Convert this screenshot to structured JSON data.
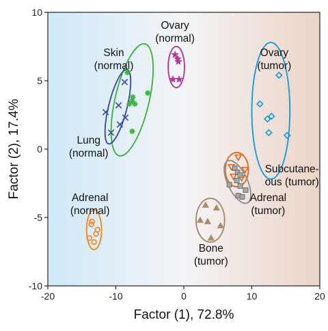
{
  "chart_data": {
    "type": "scatter",
    "xlabel": "Factor (1), 72.8%",
    "ylabel": "Factor (2), 17.4%",
    "xlim": [
      -20,
      20
    ],
    "ylim": [
      -10,
      10
    ],
    "xticks": [
      "-20",
      "-10",
      "0",
      "10",
      "20"
    ],
    "yticks": [
      "-10",
      "-5",
      "0",
      "5",
      "10"
    ],
    "grid": false,
    "legend": "none",
    "background": {
      "left": "#cfe9f8",
      "mid": "#f4f4f6",
      "right": "#ecd4c7"
    },
    "series": [
      {
        "name": "Skin (normal)",
        "marker": "asterisk",
        "color": "#3db43d",
        "points": [
          [
            -8.3,
            5.6
          ],
          [
            -7.5,
            3.8
          ],
          [
            -7.2,
            3.3
          ],
          [
            -7.6,
            3.5
          ],
          [
            -5.3,
            4.1
          ],
          [
            -8.0,
            3.3
          ],
          [
            -7.6,
            1.3
          ]
        ],
        "ellipse": {
          "center": [
            -7.6,
            3.6
          ],
          "radii": [
            2.5,
            4.2
          ],
          "rotation": 13
        }
      },
      {
        "name": "Lung (normal)",
        "marker": "cross",
        "color": "#3a4ea3",
        "points": [
          [
            -8.7,
            4.9
          ],
          [
            -11.5,
            2.7
          ],
          [
            -9.6,
            3.2
          ],
          [
            -8.6,
            2.3
          ],
          [
            -9.4,
            1.8
          ],
          [
            -10.7,
            1.2
          ]
        ],
        "ellipse": {
          "center": [
            -9.7,
            3.1
          ],
          "radii": [
            1.35,
            2.8
          ],
          "rotation": 14
        }
      },
      {
        "name": "Ovary (normal)",
        "marker": "star",
        "color": "#b03a97",
        "points": [
          [
            -1.3,
            6.9
          ],
          [
            -0.9,
            6.6
          ],
          [
            -0.8,
            6.4
          ],
          [
            -1.6,
            5.1
          ],
          [
            -0.7,
            5.1
          ]
        ],
        "ellipse": {
          "center": [
            -1.1,
            6.0
          ],
          "radii": [
            1.2,
            1.5
          ],
          "rotation": 0
        }
      },
      {
        "name": "Ovary (tumor)",
        "marker": "diamond",
        "color": "#1b9cd6",
        "points": [
          [
            14.0,
            5.4
          ],
          [
            11.2,
            3.3
          ],
          [
            12.9,
            2.4
          ],
          [
            12.3,
            2.2
          ],
          [
            12.5,
            1.2
          ],
          [
            15.2,
            1.0
          ]
        ],
        "ellipse": {
          "center": [
            12.8,
            2.8
          ],
          "radii": [
            2.8,
            5.0
          ],
          "rotation": 0
        }
      },
      {
        "name": "Subcutaneous (tumor)",
        "marker": "triangle-down",
        "color": "#e06b23",
        "points": [
          [
            8.0,
            -0.6
          ],
          [
            7.0,
            -1.3
          ],
          [
            9.0,
            -1.5
          ],
          [
            7.3,
            -2.0
          ],
          [
            8.5,
            -2.1
          ]
        ],
        "ellipse": {
          "center": [
            7.8,
            -1.5
          ],
          "radii": [
            1.7,
            1.25
          ],
          "rotation": 0
        }
      },
      {
        "name": "Adrenal (tumor)",
        "marker": "square",
        "color": "#8c8c8c",
        "points": [
          [
            7.5,
            -1.4
          ],
          [
            7.9,
            -1.7
          ],
          [
            8.3,
            -1.9
          ],
          [
            7.8,
            -2.3
          ],
          [
            8.3,
            -2.7
          ],
          [
            6.7,
            -2.6
          ],
          [
            9.1,
            -3.0
          ],
          [
            8.0,
            -3.4
          ],
          [
            8.6,
            -3.5
          ]
        ],
        "ellipse": {
          "center": [
            7.9,
            -2.4
          ],
          "radii": [
            1.45,
            1.7
          ],
          "rotation": -25
        }
      },
      {
        "name": "Bone (tumor)",
        "marker": "triangle-up",
        "color": "#a78b6a",
        "points": [
          [
            3.2,
            -4.1
          ],
          [
            4.8,
            -4.3
          ],
          [
            2.4,
            -5.2
          ],
          [
            3.5,
            -5.3
          ],
          [
            5.4,
            -5.6
          ],
          [
            4.0,
            -6.5
          ]
        ],
        "ellipse": {
          "center": [
            3.9,
            -5.2
          ],
          "radii": [
            2.1,
            1.6
          ],
          "rotation": 0
        }
      },
      {
        "name": "Adrenal (normal)",
        "marker": "circle",
        "color": "#f08a24",
        "points": [
          [
            -13.5,
            -5.3
          ],
          [
            -13.6,
            -5.5
          ],
          [
            -12.7,
            -5.9
          ],
          [
            -12.9,
            -6.2
          ],
          [
            -13.9,
            -6.5
          ],
          [
            -13.2,
            -6.8
          ]
        ],
        "ellipse": {
          "center": [
            -13.2,
            -5.9
          ],
          "radii": [
            1.1,
            1.45
          ],
          "rotation": 0
        }
      }
    ],
    "annotations": [
      {
        "lines": [
          "Ovary",
          "(normal)"
        ],
        "x": -1.3,
        "y": 8.8
      },
      {
        "lines": [
          "Skin",
          "(normal)"
        ],
        "x": -10.3,
        "y": 6.8
      },
      {
        "lines": [
          "Ovary",
          "(tumor)"
        ],
        "x": 13.3,
        "y": 6.8
      },
      {
        "lines": [
          "Lung",
          "(normal)"
        ],
        "x": -14.0,
        "y": 0.4
      },
      {
        "lines": [
          "Subcutane-",
          "ous (tumor)"
        ],
        "x": 15.9,
        "y": -1.7
      },
      {
        "lines": [
          "Adrenal",
          "(normal)"
        ],
        "x": -13.8,
        "y": -3.8
      },
      {
        "lines": [
          "Adrenal",
          "(tumor)"
        ],
        "x": 12.4,
        "y": -3.8
      },
      {
        "lines": [
          "Bone",
          "(tumor)"
        ],
        "x": 4.0,
        "y": -7.5
      }
    ]
  }
}
